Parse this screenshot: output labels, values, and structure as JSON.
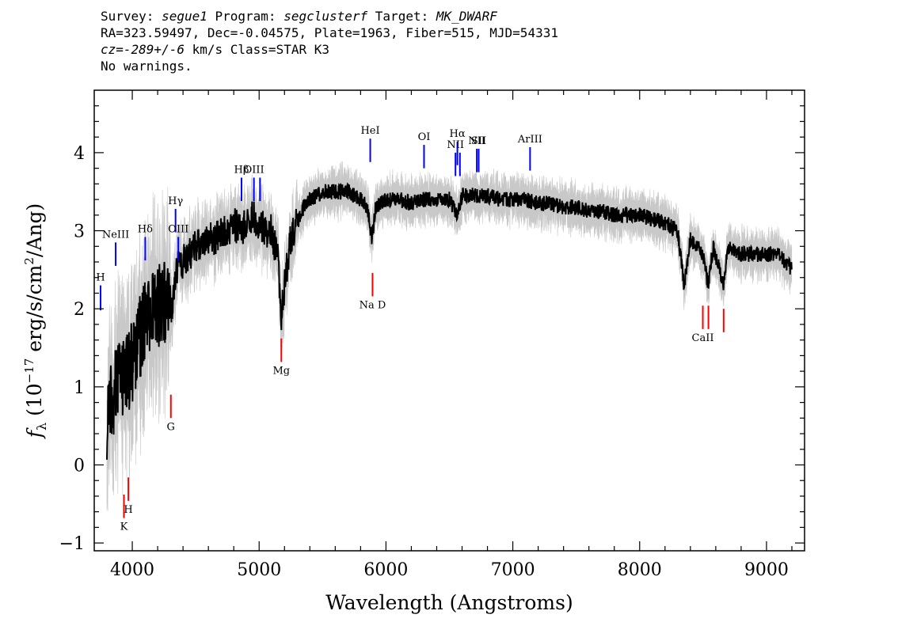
{
  "header": {
    "line1": {
      "survey_label": "Survey: ",
      "survey": "segue1",
      "program_label": " Program: ",
      "program": "segclusterf",
      "target_label": " Target: ",
      "target": "MK_DWARF"
    },
    "line2": "RA=323.59497, Dec=-0.04575, Plate=1963, Fiber=515, MJD=54331",
    "line3": {
      "cz": "cz=-289+/-6",
      "rest": " km/s Class=STAR K3"
    },
    "line4": "No warnings."
  },
  "chart_data": {
    "type": "line",
    "xlabel": "Wavelength (Angstroms)",
    "ylabel": "f_λ (10^-17 erg/s/cm^2/Ang)",
    "xlim": [
      3700,
      9300
    ],
    "ylim": [
      -1.1,
      4.8
    ],
    "x_ticks": [
      4000,
      5000,
      6000,
      7000,
      8000,
      9000
    ],
    "y_ticks": [
      -1,
      0,
      1,
      2,
      3,
      4
    ],
    "colors": {
      "flux": "#000000",
      "error_band": "#c8c8c8",
      "emission": "#0000ff",
      "absorption": "#ff0000"
    },
    "series": [
      {
        "kind": "flux",
        "x": [
          3800,
          3850,
          3900,
          3950,
          4000,
          4050,
          4100,
          4150,
          4200,
          4250,
          4300,
          4350,
          4400,
          4450,
          4500,
          4550,
          4600,
          4650,
          4700,
          4750,
          4800,
          4850,
          4900,
          4950,
          5000,
          5050,
          5100,
          5150,
          5175,
          5200,
          5250,
          5300,
          5350,
          5400,
          5500,
          5600,
          5700,
          5800,
          5850,
          5890,
          5920,
          6000,
          6100,
          6200,
          6300,
          6400,
          6500,
          6560,
          6600,
          6700,
          6800,
          6900,
          7000,
          7100,
          7200,
          7300,
          7400,
          7500,
          7600,
          7700,
          7800,
          7900,
          8000,
          8100,
          8200,
          8300,
          8350,
          8400,
          8450,
          8500,
          8540,
          8580,
          8660,
          8700,
          8800,
          8900,
          9000,
          9100,
          9200
        ],
        "y": [
          0.6,
          0.9,
          1.1,
          1.2,
          1.3,
          1.6,
          1.8,
          1.9,
          2.0,
          2.1,
          1.9,
          2.5,
          2.6,
          2.7,
          2.8,
          2.8,
          2.9,
          2.9,
          3.0,
          3.0,
          3.1,
          3.0,
          3.1,
          3.2,
          3.1,
          3.0,
          3.0,
          2.6,
          1.9,
          2.3,
          2.9,
          3.1,
          3.3,
          3.4,
          3.5,
          3.5,
          3.5,
          3.4,
          3.3,
          2.9,
          3.3,
          3.4,
          3.4,
          3.35,
          3.4,
          3.4,
          3.4,
          3.2,
          3.45,
          3.45,
          3.45,
          3.4,
          3.4,
          3.4,
          3.35,
          3.35,
          3.3,
          3.3,
          3.25,
          3.25,
          3.2,
          3.2,
          3.2,
          3.15,
          3.1,
          3.0,
          2.3,
          2.9,
          2.8,
          2.7,
          2.3,
          2.8,
          2.3,
          2.8,
          2.7,
          2.7,
          2.7,
          2.7,
          2.5
        ]
      }
    ],
    "emission_lines": [
      {
        "label": "H",
        "x": 3750,
        "y_top": 2.3,
        "y_bottom": 1.98
      },
      {
        "label": "NeIII",
        "x": 3869,
        "y_top": 2.85,
        "y_bottom": 2.55
      },
      {
        "label": "Hδ",
        "x": 4102,
        "y_top": 2.92,
        "y_bottom": 2.62
      },
      {
        "label": "Hγ",
        "x": 4341,
        "y_top": 3.28,
        "y_bottom": 2.98
      },
      {
        "label": "OIII",
        "x": 4363,
        "y_top": 2.92,
        "y_bottom": 2.62
      },
      {
        "label": "Hβ",
        "x": 4861,
        "y_top": 3.68,
        "y_bottom": 3.38
      },
      {
        "label": "OIII",
        "x": 4959,
        "y_top": 3.68,
        "y_bottom": 3.38
      },
      {
        "label": "",
        "x": 5007,
        "y_top": 3.68,
        "y_bottom": 3.38
      },
      {
        "label": "HeI",
        "x": 5876,
        "y_top": 4.18,
        "y_bottom": 3.88
      },
      {
        "label": "OI",
        "x": 6300,
        "y_top": 4.1,
        "y_bottom": 3.8
      },
      {
        "label": "NII",
        "x": 6548,
        "y_top": 4.0,
        "y_bottom": 3.7
      },
      {
        "label": "Hα",
        "x": 6563,
        "y_top": 4.14,
        "y_bottom": 3.84
      },
      {
        "label": "",
        "x": 6583,
        "y_top": 4.0,
        "y_bottom": 3.7
      },
      {
        "label": "NII",
        "x": 6716,
        "y_top": 4.05,
        "y_bottom": 3.75
      },
      {
        "label": "SII",
        "x": 6731,
        "y_top": 4.05,
        "y_bottom": 3.75
      },
      {
        "label": "ArIII",
        "x": 7136,
        "y_top": 4.07,
        "y_bottom": 3.77
      }
    ],
    "absorption_lines": [
      {
        "label": "K",
        "x": 3934,
        "y_top": -0.38,
        "y_bottom": -0.68
      },
      {
        "label": "H",
        "x": 3969,
        "y_top": -0.16,
        "y_bottom": -0.46
      },
      {
        "label": "G",
        "x": 4304,
        "y_top": 0.9,
        "y_bottom": 0.6
      },
      {
        "label": "Mg",
        "x": 5175,
        "y_top": 1.62,
        "y_bottom": 1.32
      },
      {
        "label": "Na D",
        "x": 5894,
        "y_top": 2.46,
        "y_bottom": 2.16
      },
      {
        "label": "CaII",
        "x": 8498,
        "y_top": 2.04,
        "y_bottom": 1.74
      },
      {
        "label": "",
        "x": 8542,
        "y_top": 2.04,
        "y_bottom": 1.74
      },
      {
        "label": "",
        "x": 8662,
        "y_top": 2.0,
        "y_bottom": 1.7
      }
    ]
  }
}
